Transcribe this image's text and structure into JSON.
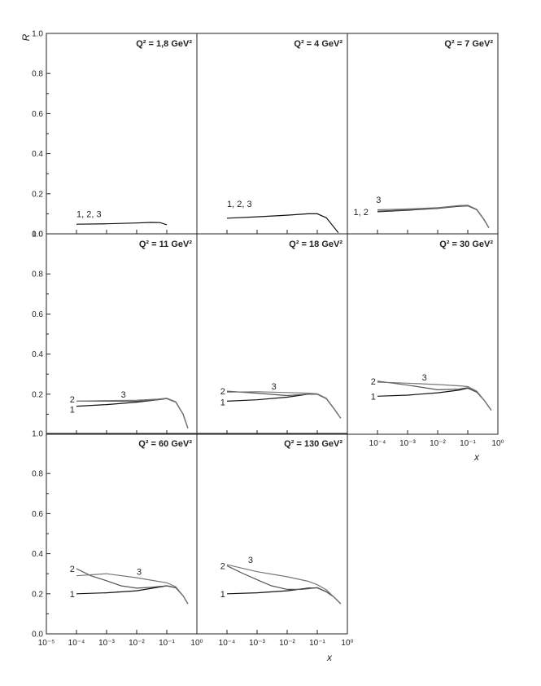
{
  "figure": {
    "y_axis_label": "R",
    "x_axis_label": "x",
    "x_tick_labels": [
      "10⁻⁵",
      "10⁻⁴",
      "10⁻³",
      "10⁻²",
      "10⁻¹",
      "10⁰"
    ],
    "y_tick_labels": [
      "0.0",
      "0.2",
      "0.4",
      "0.6",
      "0.8",
      "1.0"
    ]
  },
  "chart_data": [
    {
      "type": "line",
      "title": "Q² = 1,8 GeV²",
      "xscale": "log",
      "xlim": [
        1e-05,
        1
      ],
      "ylim": [
        0,
        1
      ],
      "series": [
        {
          "name": "1, 2, 3",
          "x": [
            0.0001,
            0.001,
            0.01,
            0.03,
            0.06,
            0.1
          ],
          "y": [
            0.048,
            0.05,
            0.054,
            0.057,
            0.056,
            0.045
          ]
        }
      ],
      "labels": [
        {
          "text": "1, 2, 3",
          "x": 0.0001,
          "y": 0.1
        }
      ]
    },
    {
      "type": "line",
      "title": "Q² = 4 GeV²",
      "xscale": "log",
      "xlim": [
        1e-05,
        1
      ],
      "ylim": [
        0,
        1
      ],
      "series": [
        {
          "name": "1, 2, 3",
          "x": [
            0.0001,
            0.001,
            0.01,
            0.05,
            0.1,
            0.2,
            0.35,
            0.5
          ],
          "y": [
            0.078,
            0.085,
            0.093,
            0.1,
            0.1,
            0.08,
            0.035,
            0.005
          ]
        }
      ],
      "labels": [
        {
          "text": "1, 2, 3",
          "x": 0.0001,
          "y": 0.15
        }
      ]
    },
    {
      "type": "line",
      "title": "Q² = 7 GeV²",
      "xscale": "log",
      "xlim": [
        1e-05,
        1
      ],
      "ylim": [
        0,
        1
      ],
      "series": [
        {
          "name": "1",
          "x": [
            0.0001,
            0.001,
            0.01,
            0.05,
            0.1,
            0.2,
            0.35,
            0.5
          ],
          "y": [
            0.11,
            0.118,
            0.127,
            0.138,
            0.14,
            0.12,
            0.07,
            0.03
          ]
        },
        {
          "name": "2",
          "x": [
            0.0001,
            0.001,
            0.01,
            0.05,
            0.1,
            0.2,
            0.35,
            0.5
          ],
          "y": [
            0.113,
            0.12,
            0.128,
            0.139,
            0.141,
            0.121,
            0.07,
            0.03
          ]
        },
        {
          "name": "3",
          "x": [
            0.0001,
            0.001,
            0.01,
            0.05,
            0.1,
            0.2,
            0.35,
            0.5
          ],
          "y": [
            0.12,
            0.124,
            0.131,
            0.141,
            0.143,
            0.122,
            0.071,
            0.03
          ]
        }
      ],
      "labels": [
        {
          "text": "3",
          "x": 9e-05,
          "y": 0.17
        },
        {
          "text": "1, 2",
          "x": 1.6e-05,
          "y": 0.11
        }
      ]
    },
    {
      "type": "line",
      "title": "Q² = 11 GeV²",
      "xscale": "log",
      "xlim": [
        1e-05,
        1
      ],
      "ylim": [
        0,
        1
      ],
      "series": [
        {
          "name": "1",
          "x": [
            0.0001,
            0.001,
            0.01,
            0.05,
            0.1,
            0.2,
            0.35,
            0.5
          ],
          "y": [
            0.14,
            0.148,
            0.16,
            0.172,
            0.178,
            0.16,
            0.1,
            0.03
          ]
        },
        {
          "name": "2",
          "x": [
            0.0001,
            0.001,
            0.01,
            0.05,
            0.1,
            0.2,
            0.35,
            0.5
          ],
          "y": [
            0.165,
            0.165,
            0.165,
            0.172,
            0.178,
            0.16,
            0.1,
            0.03
          ]
        },
        {
          "name": "3",
          "x": [
            0.0001,
            0.001,
            0.01,
            0.05,
            0.1,
            0.2,
            0.35,
            0.5
          ],
          "y": [
            0.165,
            0.168,
            0.17,
            0.175,
            0.18,
            0.162,
            0.1,
            0.03
          ]
        }
      ],
      "labels": [
        {
          "text": "3",
          "x": 0.003,
          "y": 0.2
        },
        {
          "text": "2",
          "x": 6e-05,
          "y": 0.175
        },
        {
          "text": "1",
          "x": 6e-05,
          "y": 0.125
        }
      ]
    },
    {
      "type": "line",
      "title": "Q² = 18 GeV²",
      "xscale": "log",
      "xlim": [
        1e-05,
        1
      ],
      "ylim": [
        0,
        1
      ],
      "series": [
        {
          "name": "1",
          "x": [
            0.0001,
            0.001,
            0.01,
            0.05,
            0.1,
            0.2,
            0.35,
            0.6
          ],
          "y": [
            0.165,
            0.172,
            0.185,
            0.2,
            0.2,
            0.178,
            0.13,
            0.08
          ]
        },
        {
          "name": "2",
          "x": [
            0.0001,
            0.001,
            0.01,
            0.05,
            0.1,
            0.2,
            0.35,
            0.6
          ],
          "y": [
            0.215,
            0.205,
            0.193,
            0.2,
            0.2,
            0.178,
            0.13,
            0.08
          ]
        },
        {
          "name": "3",
          "x": [
            0.0001,
            0.001,
            0.01,
            0.05,
            0.1,
            0.2,
            0.35,
            0.6
          ],
          "y": [
            0.21,
            0.212,
            0.208,
            0.205,
            0.202,
            0.18,
            0.13,
            0.08
          ]
        }
      ],
      "labels": [
        {
          "text": "3",
          "x": 0.003,
          "y": 0.24
        },
        {
          "text": "2",
          "x": 6e-05,
          "y": 0.215
        },
        {
          "text": "1",
          "x": 6e-05,
          "y": 0.16
        }
      ]
    },
    {
      "type": "line",
      "title": "Q² = 30 GeV²",
      "xscale": "log",
      "xlim": [
        1e-05,
        1
      ],
      "ylim": [
        0,
        1
      ],
      "series": [
        {
          "name": "1",
          "x": [
            0.0001,
            0.001,
            0.01,
            0.05,
            0.1,
            0.2,
            0.35,
            0.6
          ],
          "y": [
            0.19,
            0.195,
            0.207,
            0.22,
            0.23,
            0.21,
            0.17,
            0.12
          ]
        },
        {
          "name": "2",
          "x": [
            0.0001,
            0.001,
            0.01,
            0.05,
            0.1,
            0.2,
            0.35,
            0.6
          ],
          "y": [
            0.265,
            0.245,
            0.222,
            0.225,
            0.232,
            0.21,
            0.17,
            0.12
          ]
        },
        {
          "name": "3",
          "x": [
            0.0001,
            0.001,
            0.01,
            0.05,
            0.1,
            0.2,
            0.35,
            0.6
          ],
          "y": [
            0.26,
            0.255,
            0.248,
            0.242,
            0.238,
            0.215,
            0.17,
            0.12
          ]
        }
      ],
      "labels": [
        {
          "text": "3",
          "x": 0.003,
          "y": 0.285
        },
        {
          "text": "2",
          "x": 6e-05,
          "y": 0.265
        },
        {
          "text": "1",
          "x": 6e-05,
          "y": 0.19
        }
      ]
    },
    {
      "type": "line",
      "title": "Q² = 60 GeV²",
      "xscale": "log",
      "xlim": [
        1e-05,
        1
      ],
      "ylim": [
        0,
        1
      ],
      "series": [
        {
          "name": "1",
          "x": [
            0.0001,
            0.001,
            0.01,
            0.05,
            0.1,
            0.2,
            0.35,
            0.5
          ],
          "y": [
            0.2,
            0.205,
            0.215,
            0.232,
            0.24,
            0.23,
            0.19,
            0.15
          ]
        },
        {
          "name": "2",
          "x": [
            0.0001,
            0.0003,
            0.001,
            0.003,
            0.01,
            0.03,
            0.1,
            0.2,
            0.35,
            0.5
          ],
          "y": [
            0.325,
            0.29,
            0.265,
            0.24,
            0.228,
            0.232,
            0.24,
            0.23,
            0.19,
            0.15
          ]
        },
        {
          "name": "3",
          "x": [
            0.0001,
            0.001,
            0.01,
            0.05,
            0.1,
            0.2,
            0.35,
            0.5
          ],
          "y": [
            0.29,
            0.3,
            0.28,
            0.262,
            0.255,
            0.235,
            0.19,
            0.15
          ]
        }
      ],
      "labels": [
        {
          "text": "3",
          "x": 0.01,
          "y": 0.31
        },
        {
          "text": "2",
          "x": 6e-05,
          "y": 0.325
        },
        {
          "text": "1",
          "x": 6e-05,
          "y": 0.2
        }
      ]
    },
    {
      "type": "line",
      "title": "Q² = 130 GeV²",
      "xscale": "log",
      "xlim": [
        1e-05,
        1
      ],
      "ylim": [
        0,
        1
      ],
      "series": [
        {
          "name": "1",
          "x": [
            0.0001,
            0.001,
            0.01,
            0.05,
            0.1,
            0.2,
            0.35,
            0.6
          ],
          "y": [
            0.2,
            0.205,
            0.215,
            0.228,
            0.23,
            0.21,
            0.185,
            0.15
          ]
        },
        {
          "name": "2",
          "x": [
            0.0001,
            0.0003,
            0.001,
            0.003,
            0.01,
            0.03,
            0.1,
            0.2,
            0.35,
            0.6
          ],
          "y": [
            0.34,
            0.305,
            0.27,
            0.24,
            0.222,
            0.222,
            0.23,
            0.21,
            0.185,
            0.15
          ]
        },
        {
          "name": "3",
          "x": [
            0.0001,
            0.001,
            0.01,
            0.05,
            0.1,
            0.2,
            0.35,
            0.6
          ],
          "y": [
            0.345,
            0.31,
            0.285,
            0.262,
            0.245,
            0.22,
            0.185,
            0.15
          ]
        }
      ],
      "labels": [
        {
          "text": "3",
          "x": 0.0005,
          "y": 0.37
        },
        {
          "text": "2",
          "x": 6e-05,
          "y": 0.34
        },
        {
          "text": "1",
          "x": 6e-05,
          "y": 0.2
        }
      ]
    }
  ]
}
